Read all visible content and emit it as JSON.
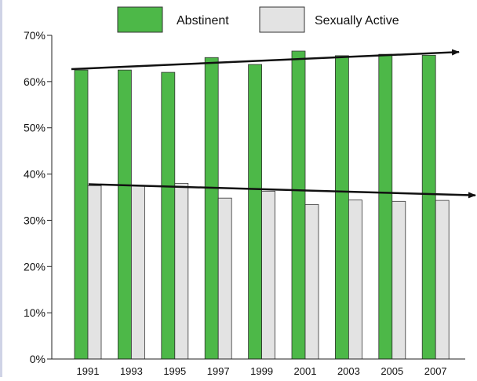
{
  "chart_data": {
    "type": "bar",
    "categories": [
      "1991",
      "1993",
      "1995",
      "1997",
      "1999",
      "2001",
      "2003",
      "2005",
      "2007"
    ],
    "series": [
      {
        "name": "Abstinent",
        "values": [
          62.5,
          62.5,
          62.0,
          65.2,
          63.7,
          66.6,
          65.6,
          65.9,
          65.7
        ],
        "color": "#4db848"
      },
      {
        "name": "Sexually Active",
        "values": [
          37.5,
          37.5,
          38.0,
          34.8,
          36.3,
          33.4,
          34.4,
          34.1,
          34.3
        ],
        "color": "#e3e3e3"
      }
    ],
    "y_ticks": [
      "0%",
      "10%",
      "20%",
      "30%",
      "40%",
      "50%",
      "60%",
      "70%"
    ],
    "ylim": [
      0,
      70
    ],
    "grid": false,
    "legend_position": "top",
    "trend_lines": [
      {
        "series": "Abstinent",
        "from": [
          1991,
          62.7
        ],
        "to": [
          2007,
          66.4
        ]
      },
      {
        "series": "Sexually Active",
        "from": [
          1991,
          37.8
        ],
        "to": [
          2007,
          35.4
        ]
      }
    ]
  }
}
